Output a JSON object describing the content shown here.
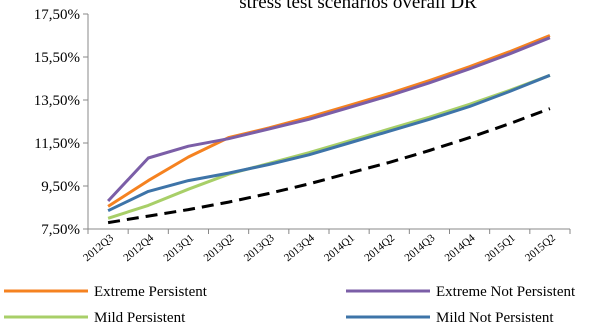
{
  "chart_data": {
    "type": "line",
    "title": "stress test scenarios overall DR",
    "xlabel": "",
    "ylabel": "",
    "categories": [
      "2012Q3",
      "2012Q4",
      "2013Q1",
      "2013Q2",
      "2013Q3",
      "2013Q4",
      "2014Q1",
      "2014Q2",
      "2014Q3",
      "2014Q4",
      "2015Q1",
      "2015Q2"
    ],
    "ylim": [
      7.5,
      17.5
    ],
    "ytick_values": [
      7.5,
      9.5,
      11.5,
      13.5,
      15.5,
      17.5
    ],
    "ytick_labels": [
      "7,50%",
      "9,50%",
      "11,50%",
      "13,50%",
      "15,50%",
      "17,50%"
    ],
    "grid": false,
    "legend_position": "bottom",
    "series": [
      {
        "name": "Extreme  Persistent",
        "color": "#F58220",
        "dash": "solid",
        "values": [
          8.55,
          9.75,
          10.85,
          11.75,
          12.2,
          12.7,
          13.25,
          13.8,
          14.4,
          15.05,
          15.75,
          16.5
        ]
      },
      {
        "name": "Extreme  Not Persistent",
        "color": "#7B5EA7",
        "dash": "solid",
        "values": [
          8.8,
          10.8,
          11.35,
          11.7,
          12.15,
          12.6,
          13.15,
          13.7,
          14.3,
          14.95,
          15.65,
          16.4
        ]
      },
      {
        "name": "Mild  Persistent",
        "color": "#A8CF68",
        "dash": "solid",
        "values": [
          8.0,
          8.6,
          9.35,
          10.05,
          10.55,
          11.05,
          11.6,
          12.15,
          12.7,
          13.3,
          13.95,
          14.65
        ]
      },
      {
        "name": "Mild Not Persistent",
        "color": "#3E74A8",
        "dash": "solid",
        "values": [
          8.35,
          9.25,
          9.75,
          10.1,
          10.5,
          10.95,
          11.5,
          12.05,
          12.6,
          13.2,
          13.9,
          14.65
        ]
      },
      {
        "name": "",
        "color": "#000000",
        "dash": "dashed",
        "values": [
          7.8,
          8.1,
          8.4,
          8.75,
          9.15,
          9.6,
          10.1,
          10.6,
          11.15,
          11.75,
          12.4,
          13.1
        ]
      }
    ]
  }
}
